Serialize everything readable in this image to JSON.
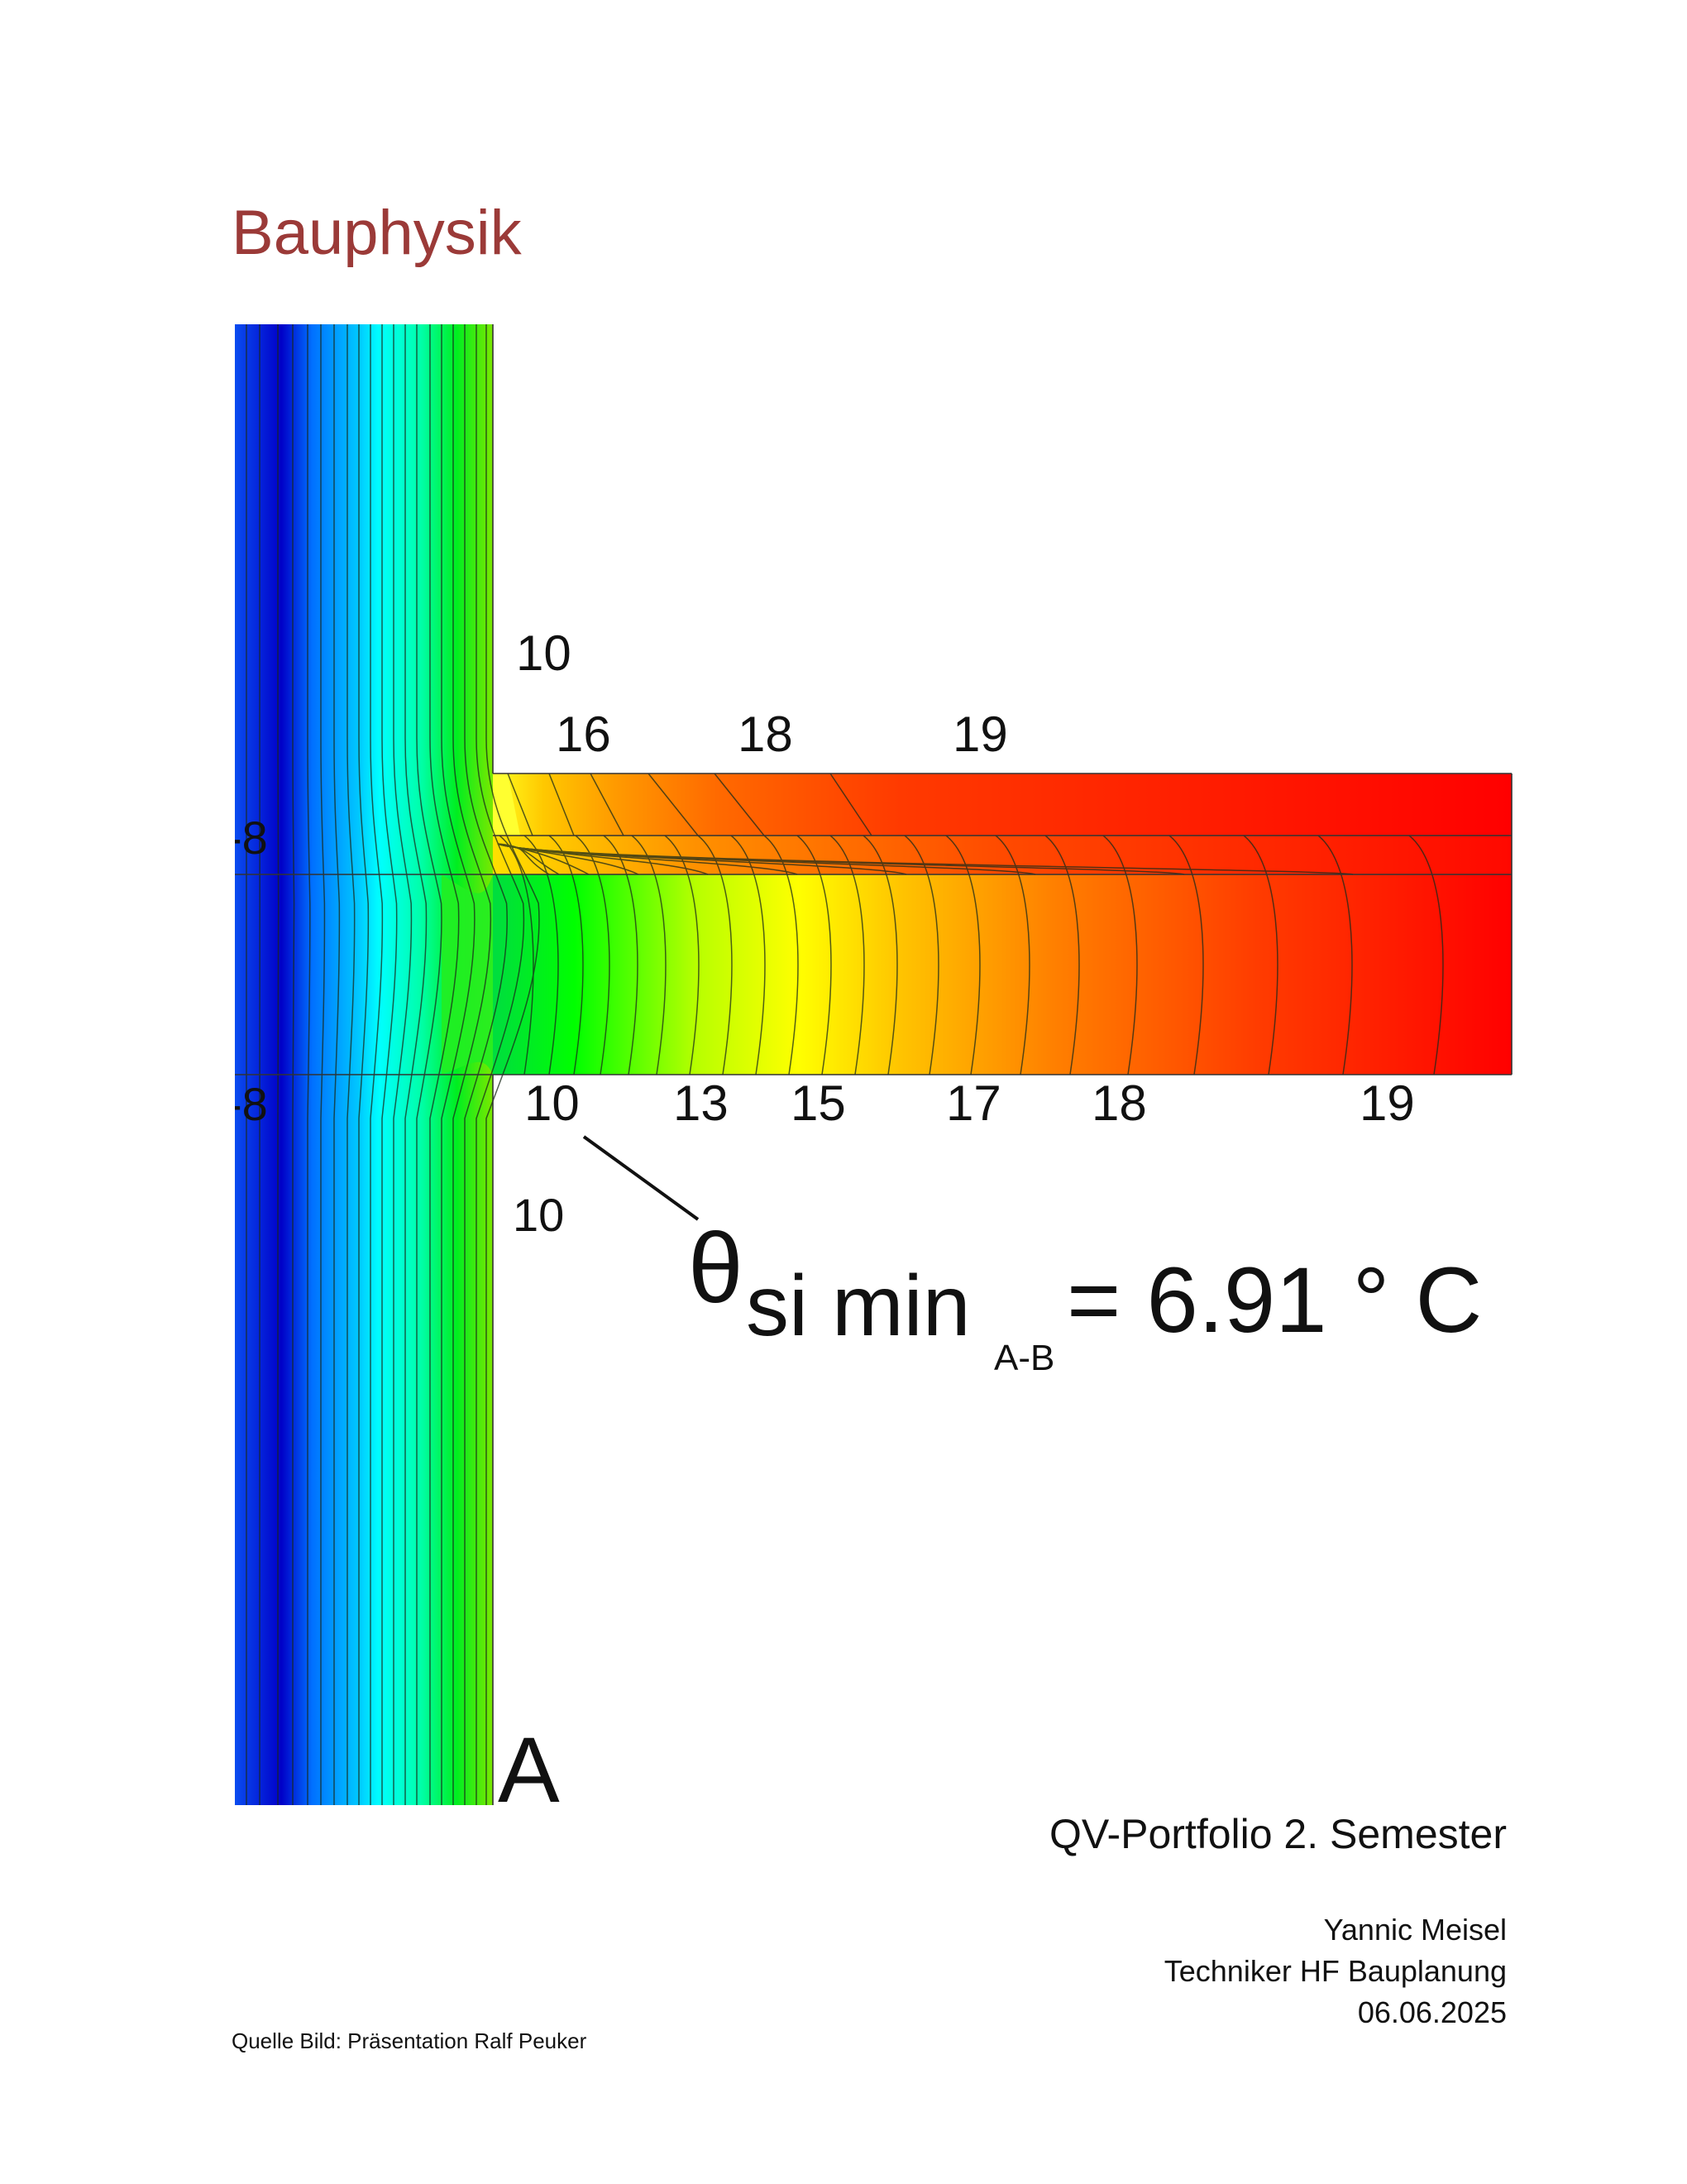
{
  "page": {
    "title": "Bauphysik",
    "portfolio": "QV-Portfolio 2. Semester",
    "author": "Yannic Meisel",
    "course": "Techniker HF Bauplanung",
    "date": "06.06.2025",
    "source": "Quelle Bild: Präsentation Ralf Peuker"
  },
  "figure": {
    "labels_left": [
      "-8",
      "-8"
    ],
    "labels_upper": [
      "10",
      "16",
      "18",
      "19"
    ],
    "labels_lower": [
      "10",
      "13",
      "15",
      "17",
      "18",
      "19"
    ],
    "label_wall_lower": "10",
    "point_label": "A",
    "formula": {
      "symbol": "θ",
      "sub1": "si min",
      "sub2": "A-B",
      "rhs": "= 6.91 ° C"
    },
    "colors": {
      "cold": "#0000c8",
      "mid": "#00ff00",
      "warm": "#ff0000",
      "title": "#9b3a38"
    }
  }
}
